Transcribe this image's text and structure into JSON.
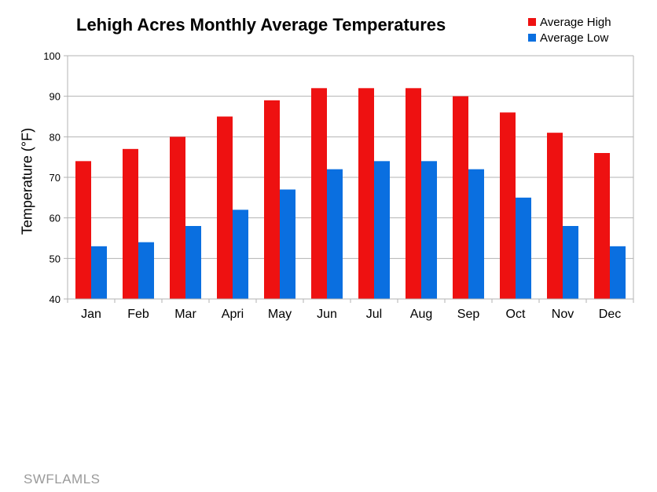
{
  "chart_data": {
    "type": "bar",
    "title": "Lehigh Acres Monthly Average Temperatures",
    "xlabel": "",
    "ylabel": "Temperature (°F)",
    "ylim": [
      40,
      100
    ],
    "yticks": [
      40,
      50,
      60,
      70,
      80,
      90,
      100
    ],
    "grid": true,
    "legend_position": "top-right",
    "categories": [
      "Jan",
      "Feb",
      "Mar",
      "Apri",
      "May",
      "Jun",
      "Jul",
      "Aug",
      "Sep",
      "Oct",
      "Nov",
      "Dec"
    ],
    "series": [
      {
        "name": "Average High",
        "color": "#ee1111",
        "values": [
          74,
          77,
          80,
          85,
          89,
          92,
          92,
          92,
          90,
          86,
          81,
          76
        ]
      },
      {
        "name": "Average Low",
        "color": "#0a6fe0",
        "values": [
          53,
          54,
          58,
          62,
          67,
          72,
          74,
          74,
          72,
          65,
          58,
          53
        ]
      }
    ]
  },
  "watermark": "SWFLAMLS"
}
